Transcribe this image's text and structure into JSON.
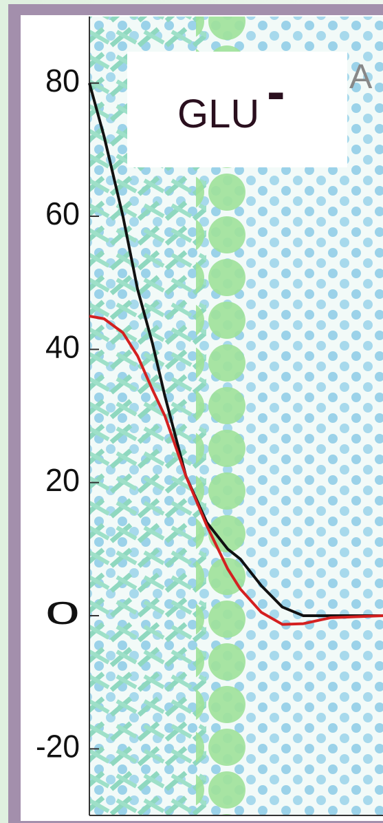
{
  "chart_data": {
    "type": "line",
    "panel_label": {
      "text": "GLU",
      "sup": "-"
    },
    "corner_text": "A",
    "x": [
      0,
      0.7,
      1.6,
      2.3,
      3,
      3.6,
      4.6,
      5.6,
      6.6,
      7.2,
      8.2,
      9.2,
      10.2,
      11.5,
      14
    ],
    "series": [
      {
        "color": "#111111",
        "values": [
          80,
          72,
          60,
          49,
          41,
          33,
          21,
          14,
          10,
          8.5,
          4.5,
          1.3,
          0,
          0,
          0
        ]
      },
      {
        "color": "#d42020",
        "values": [
          45,
          44.6,
          42.5,
          39,
          34,
          30,
          21,
          13.5,
          7,
          4,
          0.5,
          -1.3,
          -1.2,
          -0.3,
          0
        ]
      }
    ],
    "xlim": [
      0,
      14
    ],
    "ylim": [
      -30,
      90
    ],
    "yticks": [
      -20,
      0,
      20,
      40,
      60,
      80
    ]
  }
}
